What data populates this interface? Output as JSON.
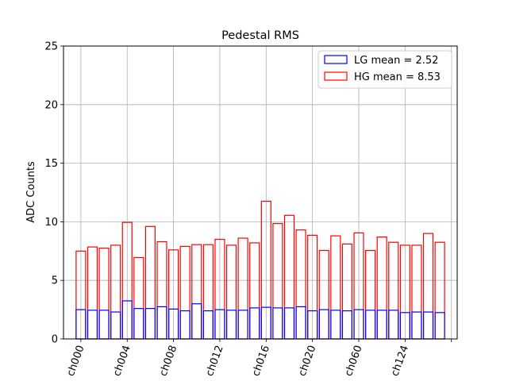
{
  "chart_data": {
    "type": "bar",
    "title": "Pedestal RMS",
    "xlabel": "",
    "ylabel": "ADC Counts",
    "ylim": [
      0,
      25
    ],
    "yticks": [
      0,
      5,
      10,
      15,
      20,
      25
    ],
    "grid": true,
    "legend_position": "top-right",
    "x_tick_labels": [
      "ch000",
      "ch004",
      "ch008",
      "ch012",
      "ch016",
      "ch020",
      "ch060",
      "ch124"
    ],
    "series": [
      {
        "name": "LG mean = 2.52",
        "color": "#0000ff",
        "values": [
          2.5,
          2.45,
          2.45,
          2.3,
          3.25,
          2.6,
          2.6,
          2.75,
          2.55,
          2.4,
          3.0,
          2.4,
          2.5,
          2.45,
          2.45,
          2.65,
          2.7,
          2.65,
          2.65,
          2.75,
          2.4,
          2.5,
          2.45,
          2.4,
          2.5,
          2.45,
          2.45,
          2.45,
          2.25,
          2.3,
          2.3,
          2.25
        ]
      },
      {
        "name": "HG mean = 8.53",
        "color": "#ff0000",
        "values": [
          7.5,
          7.85,
          7.75,
          8.0,
          9.95,
          6.95,
          9.6,
          8.3,
          7.6,
          7.9,
          8.05,
          8.05,
          8.5,
          8.0,
          8.6,
          8.2,
          11.75,
          9.85,
          10.55,
          9.3,
          8.85,
          7.55,
          8.8,
          8.1,
          9.05,
          7.55,
          8.7,
          8.25,
          8.0,
          8.0,
          9.0,
          8.25
        ]
      }
    ]
  }
}
